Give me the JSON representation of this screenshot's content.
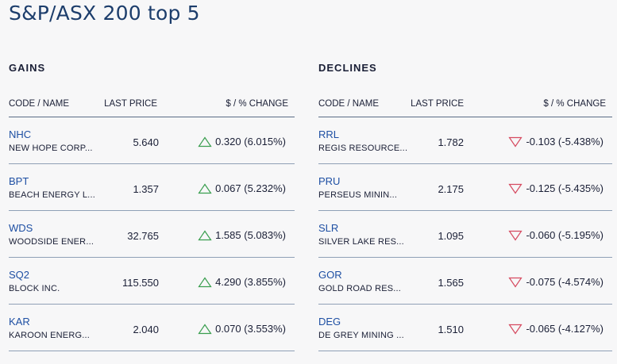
{
  "page_title": "S&P/ASX 200 top 5",
  "colors": {
    "up": "#3a9e4f",
    "down": "#d64a60",
    "code_link": "#1e4fa3",
    "title": "#1c3d6b"
  },
  "columns": {
    "name": "CODE / NAME",
    "price": "LAST PRICE",
    "change": "$ / % CHANGE"
  },
  "gains": {
    "title": "GAINS",
    "rows": [
      {
        "code": "NHC",
        "name": "NEW HOPE CORP...",
        "price": "5.640",
        "change": "0.320 (6.015%)",
        "icon": "up-triangle-icon"
      },
      {
        "code": "BPT",
        "name": "BEACH ENERGY L...",
        "price": "1.357",
        "change": "0.067 (5.232%)",
        "icon": "up-triangle-icon"
      },
      {
        "code": "WDS",
        "name": "WOODSIDE ENER...",
        "price": "32.765",
        "change": "1.585 (5.083%)",
        "icon": "up-triangle-icon"
      },
      {
        "code": "SQ2",
        "name": "BLOCK INC.",
        "price": "115.550",
        "change": "4.290 (3.855%)",
        "icon": "up-triangle-icon"
      },
      {
        "code": "KAR",
        "name": "KAROON ENERG...",
        "price": "2.040",
        "change": "0.070 (3.553%)",
        "icon": "up-triangle-icon"
      }
    ]
  },
  "declines": {
    "title": "DECLINES",
    "rows": [
      {
        "code": "RRL",
        "name": "REGIS RESOURCE...",
        "price": "1.782",
        "change": "-0.103 (-5.438%)",
        "icon": "down-triangle-icon"
      },
      {
        "code": "PRU",
        "name": "PERSEUS MININ...",
        "price": "2.175",
        "change": "-0.125 (-5.435%)",
        "icon": "down-triangle-icon"
      },
      {
        "code": "SLR",
        "name": "SILVER LAKE RES...",
        "price": "1.095",
        "change": "-0.060 (-5.195%)",
        "icon": "down-triangle-icon"
      },
      {
        "code": "GOR",
        "name": "GOLD ROAD RES...",
        "price": "1.565",
        "change": "-0.075 (-4.574%)",
        "icon": "down-triangle-icon"
      },
      {
        "code": "DEG",
        "name": "DE GREY MINING ...",
        "price": "1.510",
        "change": "-0.065 (-4.127%)",
        "icon": "down-triangle-icon"
      }
    ]
  }
}
